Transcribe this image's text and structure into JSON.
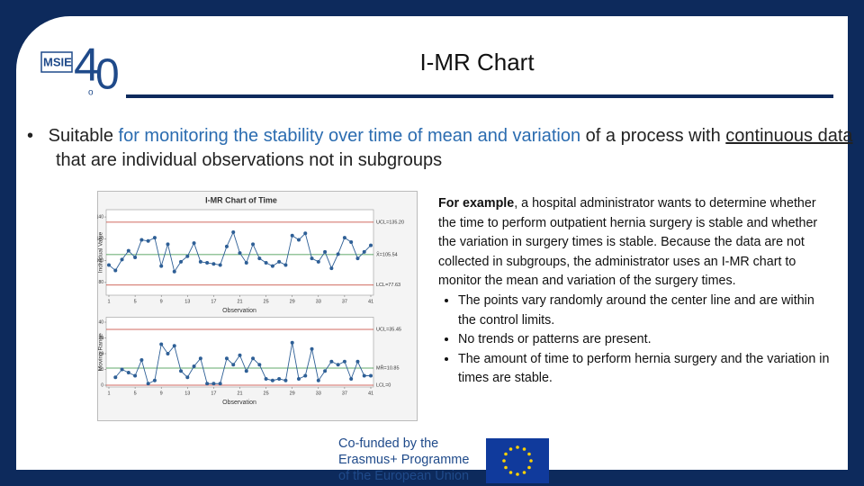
{
  "header": {
    "title": "I-MR Chart",
    "logo": {
      "mark": "MSIE",
      "number": "4",
      "suffix": "0",
      "small": "o"
    }
  },
  "bullet": [
    {
      "text": "Suitable ",
      "style": "plain"
    },
    {
      "text": "for monitoring the stability over time of mean and variation",
      "style": "blue"
    },
    {
      "text": " of a process with ",
      "style": "plain"
    },
    {
      "text": "continuous data ",
      "style": "underline"
    },
    {
      "text": "that are individual observations not in subgroups",
      "style": "plain"
    }
  ],
  "example": {
    "lead": "For example",
    "text": ", a hospital administrator wants to determine whether the time to perform outpatient hernia surgery is stable and whether the variation in surgery times is stable. Because the data are not collected in subgroups, the administrator uses an I-MR chart to monitor the mean and variation of the surgery times.",
    "items": [
      "The points vary randomly around the center line and are within the control limits.",
      "No trends or patterns are present.",
      "The amount of time to perform hernia surgery and the variation in times are stable."
    ]
  },
  "footer": {
    "lines": [
      "Co-funded by the",
      "Erasmus+ Programme",
      "of the European Union"
    ]
  },
  "chart_data": [
    {
      "type": "line",
      "title": "I-MR Chart of Time",
      "xlabel": "Observation",
      "ylabel": "Individual Value",
      "color": "#2e5f96",
      "x": [
        1,
        2,
        3,
        4,
        5,
        6,
        7,
        8,
        9,
        10,
        11,
        12,
        13,
        14,
        15,
        16,
        17,
        18,
        19,
        20,
        21,
        22,
        23,
        24,
        25,
        26,
        27,
        28,
        29,
        30,
        31,
        32,
        33,
        34,
        35,
        36,
        37,
        38,
        39,
        40,
        41
      ],
      "values": [
        96,
        91,
        101,
        109,
        103,
        119,
        118,
        121,
        95,
        115,
        90,
        99,
        104,
        116,
        99,
        98,
        97,
        96,
        113,
        126,
        107,
        98,
        115,
        102,
        98,
        95,
        99,
        96,
        123,
        119,
        125,
        102,
        99,
        108,
        93,
        106,
        121,
        117,
        102,
        108,
        114
      ],
      "xlim": [
        1,
        41
      ],
      "xticks": [
        1,
        5,
        9,
        13,
        17,
        21,
        25,
        29,
        33,
        37,
        41
      ],
      "ylim": [
        70,
        145
      ],
      "yticks": [
        80,
        100,
        120,
        140
      ],
      "limits": [
        {
          "value": 135.2,
          "label": "UCL=135.20",
          "color": "#c0392b"
        },
        {
          "value": 105.54,
          "label": "X̄=105.54",
          "color": "#2e8b3a"
        },
        {
          "value": 77.63,
          "label": "LCL=77.63",
          "color": "#c0392b"
        }
      ]
    },
    {
      "type": "line",
      "xlabel": "Observation",
      "ylabel": "Moving Range",
      "color": "#2e5f96",
      "x": [
        2,
        3,
        4,
        5,
        6,
        7,
        8,
        9,
        10,
        11,
        12,
        13,
        14,
        15,
        16,
        17,
        18,
        19,
        20,
        21,
        22,
        23,
        24,
        25,
        26,
        27,
        28,
        29,
        30,
        31,
        32,
        33,
        34,
        35,
        36,
        37,
        38,
        39,
        40,
        41
      ],
      "values": [
        5,
        10,
        8,
        6,
        16,
        1,
        3,
        26,
        20,
        25,
        9,
        5,
        12,
        17,
        1,
        1,
        1,
        17,
        13,
        19,
        9,
        17,
        13,
        4,
        3,
        4,
        3,
        27,
        4,
        6,
        23,
        3,
        9,
        15,
        13,
        15,
        4,
        15,
        6,
        6
      ],
      "xlim": [
        1,
        41
      ],
      "xticks": [
        1,
        5,
        9,
        13,
        17,
        21,
        25,
        29,
        33,
        37,
        41
      ],
      "ylim": [
        0,
        42
      ],
      "yticks": [
        0,
        10,
        20,
        30,
        40
      ],
      "limits": [
        {
          "value": 35.45,
          "label": "UCL=35.45",
          "color": "#c0392b"
        },
        {
          "value": 10.85,
          "label": "MR̄=10.85",
          "color": "#2e8b3a"
        },
        {
          "value": 0,
          "label": "LCL=0",
          "color": "#c0392b"
        }
      ]
    }
  ]
}
